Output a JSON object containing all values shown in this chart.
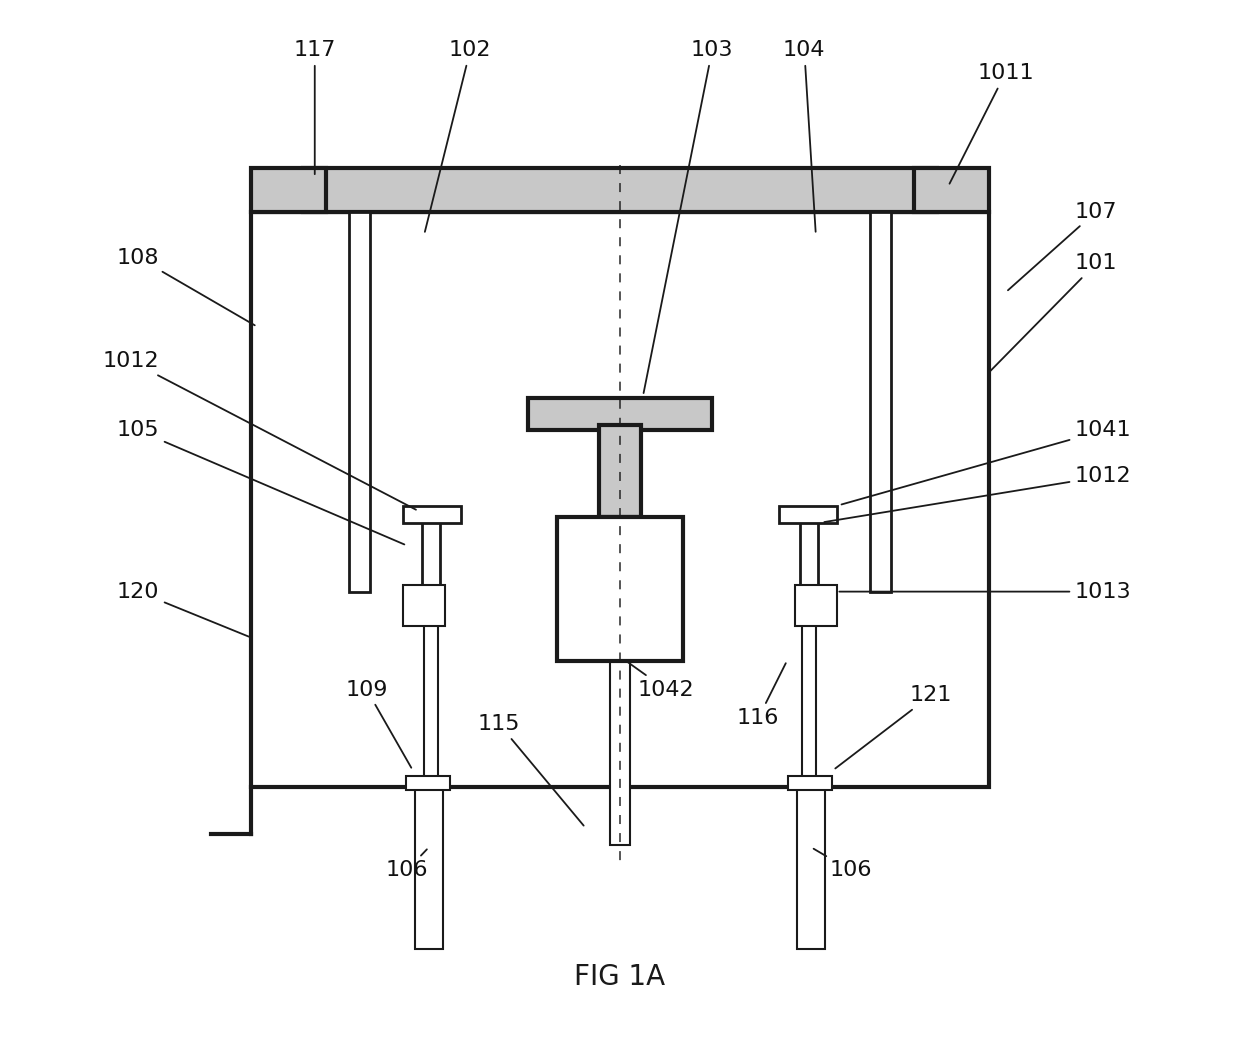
{
  "title": "FIG 1A",
  "bg_color": "#ffffff",
  "line_color": "#1a1a1a",
  "gray_fill": "#c8c8c8",
  "fig_width": 12.4,
  "fig_height": 10.45,
  "lw_main": 3.0,
  "lw_med": 2.0,
  "lw_thin": 1.5,
  "label_fs": 16
}
